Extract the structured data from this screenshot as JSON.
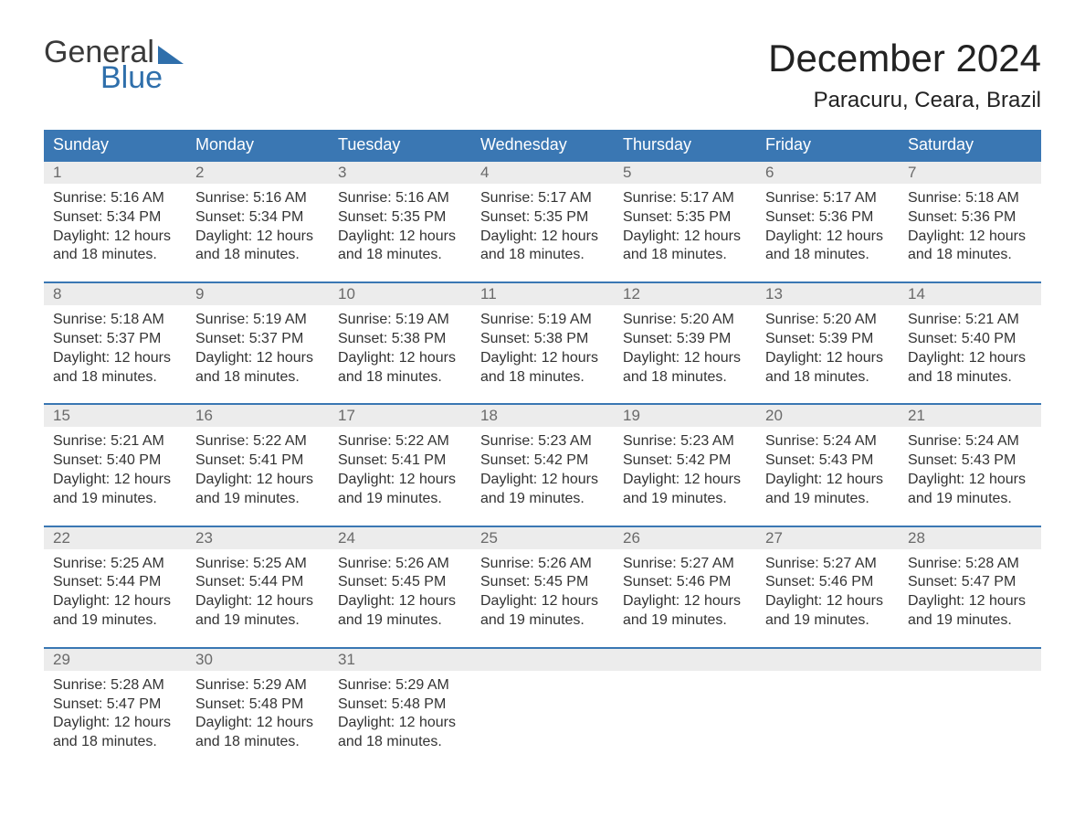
{
  "logo": {
    "line1": "General",
    "line2": "Blue"
  },
  "title": "December 2024",
  "location": "Paracuru, Ceara, Brazil",
  "colors": {
    "header_bg": "#3a77b3",
    "header_text": "#ffffff",
    "daynum_bg": "#ececec",
    "daynum_text": "#6a6a6a",
    "body_text": "#333333",
    "week_border": "#3a77b3",
    "logo_gray": "#3a3a3a",
    "logo_blue": "#2f6fab",
    "background": "#ffffff"
  },
  "typography": {
    "title_fontsize": 42,
    "location_fontsize": 24,
    "header_fontsize": 18,
    "daynum_fontsize": 17,
    "cell_fontsize": 16,
    "logo_fontsize": 34
  },
  "layout": {
    "columns": 7,
    "rows": 5,
    "week_gap": 14
  },
  "day_names": [
    "Sunday",
    "Monday",
    "Tuesday",
    "Wednesday",
    "Thursday",
    "Friday",
    "Saturday"
  ],
  "weeks": [
    {
      "nums": [
        "1",
        "2",
        "3",
        "4",
        "5",
        "6",
        "7"
      ],
      "cells": [
        {
          "sunrise": "Sunrise: 5:16 AM",
          "sunset": "Sunset: 5:34 PM",
          "day1": "Daylight: 12 hours",
          "day2": "and 18 minutes."
        },
        {
          "sunrise": "Sunrise: 5:16 AM",
          "sunset": "Sunset: 5:34 PM",
          "day1": "Daylight: 12 hours",
          "day2": "and 18 minutes."
        },
        {
          "sunrise": "Sunrise: 5:16 AM",
          "sunset": "Sunset: 5:35 PM",
          "day1": "Daylight: 12 hours",
          "day2": "and 18 minutes."
        },
        {
          "sunrise": "Sunrise: 5:17 AM",
          "sunset": "Sunset: 5:35 PM",
          "day1": "Daylight: 12 hours",
          "day2": "and 18 minutes."
        },
        {
          "sunrise": "Sunrise: 5:17 AM",
          "sunset": "Sunset: 5:35 PM",
          "day1": "Daylight: 12 hours",
          "day2": "and 18 minutes."
        },
        {
          "sunrise": "Sunrise: 5:17 AM",
          "sunset": "Sunset: 5:36 PM",
          "day1": "Daylight: 12 hours",
          "day2": "and 18 minutes."
        },
        {
          "sunrise": "Sunrise: 5:18 AM",
          "sunset": "Sunset: 5:36 PM",
          "day1": "Daylight: 12 hours",
          "day2": "and 18 minutes."
        }
      ]
    },
    {
      "nums": [
        "8",
        "9",
        "10",
        "11",
        "12",
        "13",
        "14"
      ],
      "cells": [
        {
          "sunrise": "Sunrise: 5:18 AM",
          "sunset": "Sunset: 5:37 PM",
          "day1": "Daylight: 12 hours",
          "day2": "and 18 minutes."
        },
        {
          "sunrise": "Sunrise: 5:19 AM",
          "sunset": "Sunset: 5:37 PM",
          "day1": "Daylight: 12 hours",
          "day2": "and 18 minutes."
        },
        {
          "sunrise": "Sunrise: 5:19 AM",
          "sunset": "Sunset: 5:38 PM",
          "day1": "Daylight: 12 hours",
          "day2": "and 18 minutes."
        },
        {
          "sunrise": "Sunrise: 5:19 AM",
          "sunset": "Sunset: 5:38 PM",
          "day1": "Daylight: 12 hours",
          "day2": "and 18 minutes."
        },
        {
          "sunrise": "Sunrise: 5:20 AM",
          "sunset": "Sunset: 5:39 PM",
          "day1": "Daylight: 12 hours",
          "day2": "and 18 minutes."
        },
        {
          "sunrise": "Sunrise: 5:20 AM",
          "sunset": "Sunset: 5:39 PM",
          "day1": "Daylight: 12 hours",
          "day2": "and 18 minutes."
        },
        {
          "sunrise": "Sunrise: 5:21 AM",
          "sunset": "Sunset: 5:40 PM",
          "day1": "Daylight: 12 hours",
          "day2": "and 18 minutes."
        }
      ]
    },
    {
      "nums": [
        "15",
        "16",
        "17",
        "18",
        "19",
        "20",
        "21"
      ],
      "cells": [
        {
          "sunrise": "Sunrise: 5:21 AM",
          "sunset": "Sunset: 5:40 PM",
          "day1": "Daylight: 12 hours",
          "day2": "and 19 minutes."
        },
        {
          "sunrise": "Sunrise: 5:22 AM",
          "sunset": "Sunset: 5:41 PM",
          "day1": "Daylight: 12 hours",
          "day2": "and 19 minutes."
        },
        {
          "sunrise": "Sunrise: 5:22 AM",
          "sunset": "Sunset: 5:41 PM",
          "day1": "Daylight: 12 hours",
          "day2": "and 19 minutes."
        },
        {
          "sunrise": "Sunrise: 5:23 AM",
          "sunset": "Sunset: 5:42 PM",
          "day1": "Daylight: 12 hours",
          "day2": "and 19 minutes."
        },
        {
          "sunrise": "Sunrise: 5:23 AM",
          "sunset": "Sunset: 5:42 PM",
          "day1": "Daylight: 12 hours",
          "day2": "and 19 minutes."
        },
        {
          "sunrise": "Sunrise: 5:24 AM",
          "sunset": "Sunset: 5:43 PM",
          "day1": "Daylight: 12 hours",
          "day2": "and 19 minutes."
        },
        {
          "sunrise": "Sunrise: 5:24 AM",
          "sunset": "Sunset: 5:43 PM",
          "day1": "Daylight: 12 hours",
          "day2": "and 19 minutes."
        }
      ]
    },
    {
      "nums": [
        "22",
        "23",
        "24",
        "25",
        "26",
        "27",
        "28"
      ],
      "cells": [
        {
          "sunrise": "Sunrise: 5:25 AM",
          "sunset": "Sunset: 5:44 PM",
          "day1": "Daylight: 12 hours",
          "day2": "and 19 minutes."
        },
        {
          "sunrise": "Sunrise: 5:25 AM",
          "sunset": "Sunset: 5:44 PM",
          "day1": "Daylight: 12 hours",
          "day2": "and 19 minutes."
        },
        {
          "sunrise": "Sunrise: 5:26 AM",
          "sunset": "Sunset: 5:45 PM",
          "day1": "Daylight: 12 hours",
          "day2": "and 19 minutes."
        },
        {
          "sunrise": "Sunrise: 5:26 AM",
          "sunset": "Sunset: 5:45 PM",
          "day1": "Daylight: 12 hours",
          "day2": "and 19 minutes."
        },
        {
          "sunrise": "Sunrise: 5:27 AM",
          "sunset": "Sunset: 5:46 PM",
          "day1": "Daylight: 12 hours",
          "day2": "and 19 minutes."
        },
        {
          "sunrise": "Sunrise: 5:27 AM",
          "sunset": "Sunset: 5:46 PM",
          "day1": "Daylight: 12 hours",
          "day2": "and 19 minutes."
        },
        {
          "sunrise": "Sunrise: 5:28 AM",
          "sunset": "Sunset: 5:47 PM",
          "day1": "Daylight: 12 hours",
          "day2": "and 19 minutes."
        }
      ]
    },
    {
      "nums": [
        "29",
        "30",
        "31",
        "",
        "",
        "",
        ""
      ],
      "cells": [
        {
          "sunrise": "Sunrise: 5:28 AM",
          "sunset": "Sunset: 5:47 PM",
          "day1": "Daylight: 12 hours",
          "day2": "and 18 minutes."
        },
        {
          "sunrise": "Sunrise: 5:29 AM",
          "sunset": "Sunset: 5:48 PM",
          "day1": "Daylight: 12 hours",
          "day2": "and 18 minutes."
        },
        {
          "sunrise": "Sunrise: 5:29 AM",
          "sunset": "Sunset: 5:48 PM",
          "day1": "Daylight: 12 hours",
          "day2": "and 18 minutes."
        },
        null,
        null,
        null,
        null
      ]
    }
  ]
}
